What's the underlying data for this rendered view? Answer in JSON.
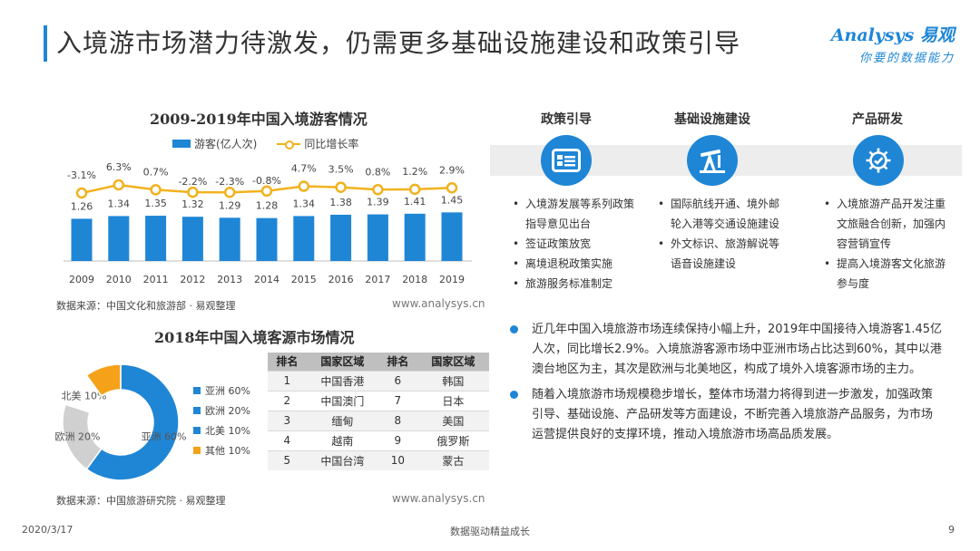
{
  "header": {
    "title": "入境游市场潜力待激发，仍需更多基础设施建设和政策引导",
    "logo_brand": "Analysys 易观",
    "logo_slogan": "你要的数据能力"
  },
  "colors": {
    "accent": "#1f86d6",
    "line": "#f2b21e",
    "pie_gray": "#d0d0d0",
    "pie_orange": "#f5a21a"
  },
  "chart_data": [
    {
      "type": "bar",
      "title": "2009-2019年中国入境游客情况",
      "categories": [
        "2009",
        "2010",
        "2011",
        "2012",
        "2013",
        "2014",
        "2015",
        "2016",
        "2017",
        "2018",
        "2019"
      ],
      "series": [
        {
          "name": "游客(亿人次)",
          "type": "bar",
          "values": [
            1.26,
            1.34,
            1.35,
            1.32,
            1.29,
            1.28,
            1.34,
            1.38,
            1.39,
            1.41,
            1.45
          ],
          "labels": [
            "1.26",
            "1.34",
            "1.35",
            "1.32",
            "1.29",
            "1.28",
            "1.34",
            "1.38",
            "1.39",
            "1.41",
            "1.45"
          ]
        },
        {
          "name": "同比增长率",
          "type": "line",
          "values": [
            -3.1,
            6.3,
            0.7,
            -2.2,
            -2.3,
            -0.8,
            4.7,
            3.5,
            0.8,
            1.2,
            2.9
          ],
          "labels": [
            "-3.1%",
            "6.3%",
            "0.7%",
            "-2.2%",
            "-2.3%",
            "-0.8%",
            "4.7%",
            "3.5%",
            "0.8%",
            "1.2%",
            "2.9%"
          ]
        }
      ],
      "source": "数据来源：中国文化和旅游部 · 易观整理",
      "website": "www.analysys.cn"
    },
    {
      "type": "pie",
      "title": "2018年中国入境客源市场情况",
      "slices": [
        {
          "name": "亚洲",
          "value": 60,
          "legend": "亚洲 60%",
          "inner_label": "亚洲 60%"
        },
        {
          "name": "欧洲",
          "value": 20,
          "legend": "欧洲 20%",
          "inner_label": "欧洲 20%"
        },
        {
          "name": "北美",
          "value": 10,
          "legend": "北美 10%",
          "inner_label": "北美 10%"
        },
        {
          "name": "其他",
          "value": 10,
          "legend": "其他 10%",
          "inner_label": ""
        }
      ],
      "slice_colors": [
        "#1f86d6",
        "#d0d0d0",
        "#ffffff",
        "#f5a21a"
      ],
      "source": "数据来源：中国旅游研究院 · 易观整理",
      "website": "www.analysys.cn"
    },
    {
      "type": "table",
      "headers": [
        "排名",
        "国家区域",
        "排名",
        "国家区域"
      ],
      "rows": [
        [
          "1",
          "中国香港",
          "6",
          "韩国"
        ],
        [
          "2",
          "中国澳门",
          "7",
          "日本"
        ],
        [
          "3",
          "缅甸",
          "8",
          "美国"
        ],
        [
          "4",
          "越南",
          "9",
          "俄罗斯"
        ],
        [
          "5",
          "中国台湾",
          "10",
          "蒙古"
        ]
      ]
    }
  ],
  "pillars": [
    {
      "title": "政策引导",
      "icon": "id-card-icon",
      "items": [
        "入境游发展等系列政策指导意见出台",
        "签证政策放宽",
        "离境退税政策实施",
        "旅游服务标准制定"
      ]
    },
    {
      "title": "基础设施建设",
      "icon": "oil-pump-icon",
      "items": [
        "国际航线开通、境外邮轮入港等交通设施建设",
        "外文标识、旅游解说等语音设施建设"
      ]
    },
    {
      "title": "产品研发",
      "icon": "gear-icon",
      "items": [
        "入境旅游产品开发注重文旅融合创新，加强内容营销宣传",
        "提高入境游客文化旅游参与度"
      ]
    }
  ],
  "summary": [
    "近几年中国入境旅游市场连续保持小幅上升，2019年中国接待入境游客1.45亿人次，同比增长2.9%。入境旅游客源市场中亚洲市场占比达到60%，其中以港澳台地区为主，其次是欧洲与北美地区，构成了境外入境客源市场的主力。",
    "随着入境旅游市场规模稳步增长，整体市场潜力将得到进一步激发，加强政策引导、基础设施、产品研发等方面建设，不断完善入境旅游产品服务，为市场运营提供良好的支撑环境，推动入境旅游市场高品质发展。"
  ],
  "footer": {
    "date": "2020/3/17",
    "center": "数据驱动精益成长",
    "page": "9"
  }
}
